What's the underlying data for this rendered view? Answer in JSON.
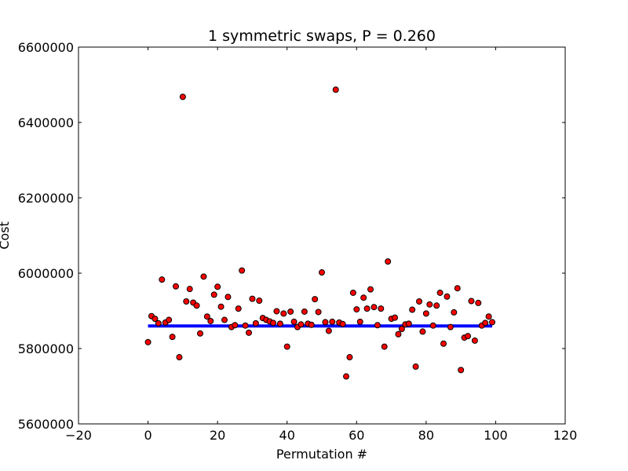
{
  "chart_data": {
    "type": "scatter",
    "title": "1 symmetric swaps, P = 0.260",
    "xlabel": "Permutation #",
    "ylabel": "Cost",
    "xlim": [
      -20,
      120
    ],
    "ylim": [
      5600000,
      6600000
    ],
    "xticks": [
      -20,
      0,
      20,
      40,
      60,
      80,
      100,
      120
    ],
    "yticks": [
      5600000,
      5800000,
      6000000,
      6200000,
      6400000,
      6600000
    ],
    "xtick_labels": [
      "−20",
      "0",
      "20",
      "40",
      "60",
      "80",
      "100",
      "120"
    ],
    "ytick_labels": [
      "5600000",
      "5800000",
      "6000000",
      "6200000",
      "6400000",
      "6600000"
    ],
    "grid": false,
    "legend": "none",
    "colors": {
      "points_fill": "#ff0000",
      "points_edge": "#000000",
      "mean_line": "#0000ff",
      "axes": "#000000",
      "background": "#ffffff"
    },
    "series": [
      {
        "kind": "scatter",
        "x": [
          0,
          1,
          2,
          3,
          4,
          5,
          6,
          7,
          8,
          9,
          10,
          11,
          12,
          13,
          14,
          15,
          16,
          17,
          18,
          19,
          20,
          21,
          22,
          23,
          24,
          25,
          26,
          27,
          28,
          29,
          30,
          31,
          32,
          33,
          34,
          35,
          36,
          37,
          38,
          39,
          40,
          41,
          42,
          43,
          44,
          45,
          46,
          47,
          48,
          49,
          50,
          51,
          52,
          53,
          54,
          55,
          56,
          57,
          58,
          59,
          60,
          61,
          62,
          63,
          64,
          65,
          66,
          67,
          68,
          69,
          70,
          71,
          72,
          73,
          74,
          75,
          76,
          77,
          78,
          79,
          80,
          81,
          82,
          83,
          84,
          85,
          86,
          87,
          88,
          89,
          90,
          91,
          92,
          93,
          94,
          95,
          96,
          97,
          98,
          99
        ],
        "y": [
          5817000,
          5886000,
          5879000,
          5867000,
          5983000,
          5869000,
          5876000,
          5831000,
          5965000,
          5777000,
          6468000,
          5925000,
          5958000,
          5922000,
          5914000,
          5840000,
          5991000,
          5885000,
          5873000,
          5943000,
          5964000,
          5911000,
          5876000,
          5937000,
          5857000,
          5862000,
          5906000,
          6007000,
          5861000,
          5842000,
          5932000,
          5867000,
          5927000,
          5881000,
          5876000,
          5872000,
          5868000,
          5899000,
          5866000,
          5893000,
          5805000,
          5898000,
          5871000,
          5857000,
          5864000,
          5898000,
          5866000,
          5863000,
          5931000,
          5897000,
          6002000,
          5870000,
          5847000,
          5871000,
          6487000,
          5869000,
          5865000,
          5726000,
          5777000,
          5948000,
          5904000,
          5871000,
          5935000,
          5906000,
          5957000,
          5910000,
          5862000,
          5906000,
          5805000,
          6031000,
          5879000,
          5882000,
          5838000,
          5852000,
          5864000,
          5866000,
          5903000,
          5752000,
          5925000,
          5845000,
          5893000,
          5917000,
          5861000,
          5914000,
          5948000,
          5813000,
          5938000,
          5857000,
          5896000,
          5960000,
          5743000,
          5829000,
          5833000,
          5926000,
          5821000,
          5921000,
          5861000,
          5868000,
          5885000,
          5870000
        ]
      },
      {
        "kind": "line",
        "label_hidden": true,
        "x": [
          0,
          99
        ],
        "y": [
          5860000,
          5860000
        ]
      }
    ]
  }
}
